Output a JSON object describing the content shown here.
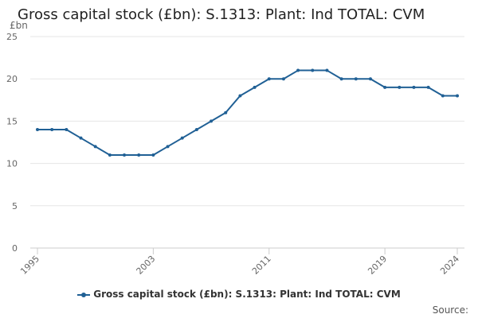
{
  "chart_data": {
    "type": "line",
    "title": "Gross capital stock (£bn): S.1313: Plant: Ind TOTAL: CVM",
    "ylabel": "£bn",
    "xlabel": "",
    "ylim": [
      0,
      25
    ],
    "yticks": [
      0,
      5,
      10,
      15,
      20,
      25
    ],
    "xlim": [
      1995,
      2024
    ],
    "xticks": [
      "1995",
      "2003",
      "2011",
      "2019",
      "2024"
    ],
    "grid": true,
    "legend_position": "bottom",
    "x": [
      1995,
      1996,
      1997,
      1998,
      1999,
      2000,
      2001,
      2002,
      2003,
      2004,
      2005,
      2006,
      2007,
      2008,
      2009,
      2010,
      2011,
      2012,
      2013,
      2014,
      2015,
      2016,
      2017,
      2018,
      2019,
      2020,
      2021,
      2022,
      2023,
      2024
    ],
    "series": [
      {
        "name": "Gross capital stock (£bn): S.1313: Plant: Ind TOTAL: CVM",
        "color": "#206095",
        "values": [
          14,
          14,
          14,
          13,
          12,
          11,
          11,
          11,
          11,
          12,
          13,
          14,
          15,
          16,
          18,
          19,
          20,
          20,
          21,
          21,
          21,
          20,
          20,
          20,
          19,
          19,
          19,
          19,
          18,
          18
        ]
      }
    ],
    "credits": "Source:"
  }
}
